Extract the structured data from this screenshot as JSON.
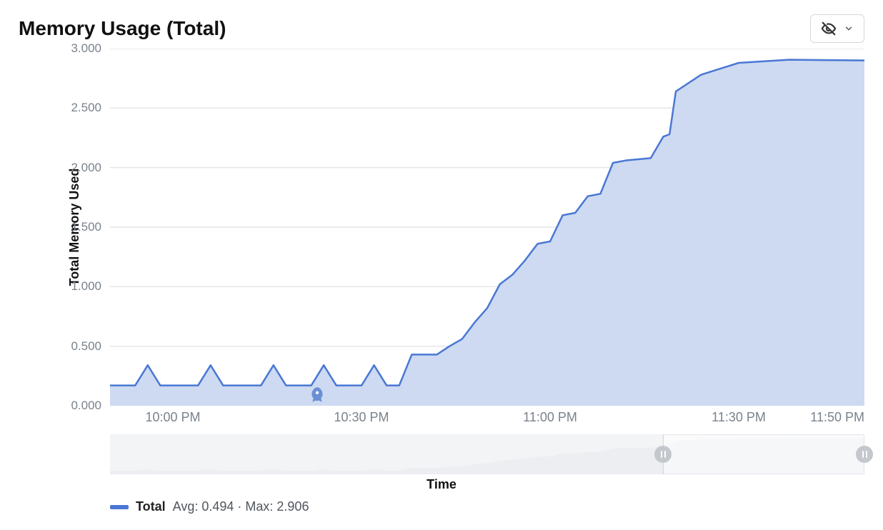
{
  "title": "Memory Usage (Total)",
  "ylabel": "Total Memory Used",
  "xlabel": "Time",
  "chart": {
    "type": "area",
    "y": {
      "min": 0.0,
      "max": 3.0,
      "ticks": [
        0.0,
        0.5,
        1.0,
        1.5,
        2.0,
        2.5,
        3.0
      ],
      "tick_labels": [
        "0.000",
        "0.500",
        "1.000",
        "1.500",
        "2.000",
        "2.500",
        "3.000"
      ]
    },
    "x": {
      "min": 0,
      "max": 120,
      "ticks": [
        10,
        40,
        70,
        100,
        120
      ],
      "tick_labels": [
        "10:00 PM",
        "10:30 PM",
        "11:00 PM",
        "11:30 PM",
        "11:50 PM"
      ]
    },
    "series": {
      "name": "Total",
      "avg": 0.494,
      "max": 2.906,
      "line_color": "#4a77d4",
      "fill_color": "#cddaf1",
      "line_width": 2.5,
      "points": [
        [
          0,
          0.17
        ],
        [
          4,
          0.17
        ],
        [
          6,
          0.34
        ],
        [
          8,
          0.17
        ],
        [
          14,
          0.17
        ],
        [
          16,
          0.34
        ],
        [
          18,
          0.17
        ],
        [
          24,
          0.17
        ],
        [
          26,
          0.34
        ],
        [
          28,
          0.17
        ],
        [
          32,
          0.17
        ],
        [
          34,
          0.34
        ],
        [
          36,
          0.17
        ],
        [
          40,
          0.17
        ],
        [
          42,
          0.34
        ],
        [
          44,
          0.17
        ],
        [
          46,
          0.17
        ],
        [
          48,
          0.43
        ],
        [
          52,
          0.43
        ],
        [
          54,
          0.5
        ],
        [
          56,
          0.56
        ],
        [
          58,
          0.7
        ],
        [
          60,
          0.82
        ],
        [
          62,
          1.02
        ],
        [
          64,
          1.1
        ],
        [
          66,
          1.22
        ],
        [
          68,
          1.36
        ],
        [
          70,
          1.38
        ],
        [
          72,
          1.6
        ],
        [
          74,
          1.62
        ],
        [
          76,
          1.76
        ],
        [
          78,
          1.78
        ],
        [
          80,
          2.04
        ],
        [
          82,
          2.06
        ],
        [
          86,
          2.08
        ],
        [
          88,
          2.26
        ],
        [
          89,
          2.28
        ],
        [
          90,
          2.64
        ],
        [
          94,
          2.78
        ],
        [
          100,
          2.88
        ],
        [
          108,
          2.906
        ],
        [
          120,
          2.9
        ]
      ]
    },
    "grid_color": "#e2e4e8",
    "background_color": "#ffffff",
    "marker": {
      "x": 33,
      "icon": "rocket"
    },
    "brush": {
      "start": 88,
      "end": 120
    }
  },
  "legend": {
    "swatch_color": "#4a77d4",
    "name": "Total",
    "stats": "Avg: 0.494 · Max: 2.906"
  },
  "colors": {
    "tick_text": "#7a828c",
    "handle": "#c4c8cd",
    "brush_track": "#f3f4f6",
    "brush_dim": "#eceef1"
  }
}
